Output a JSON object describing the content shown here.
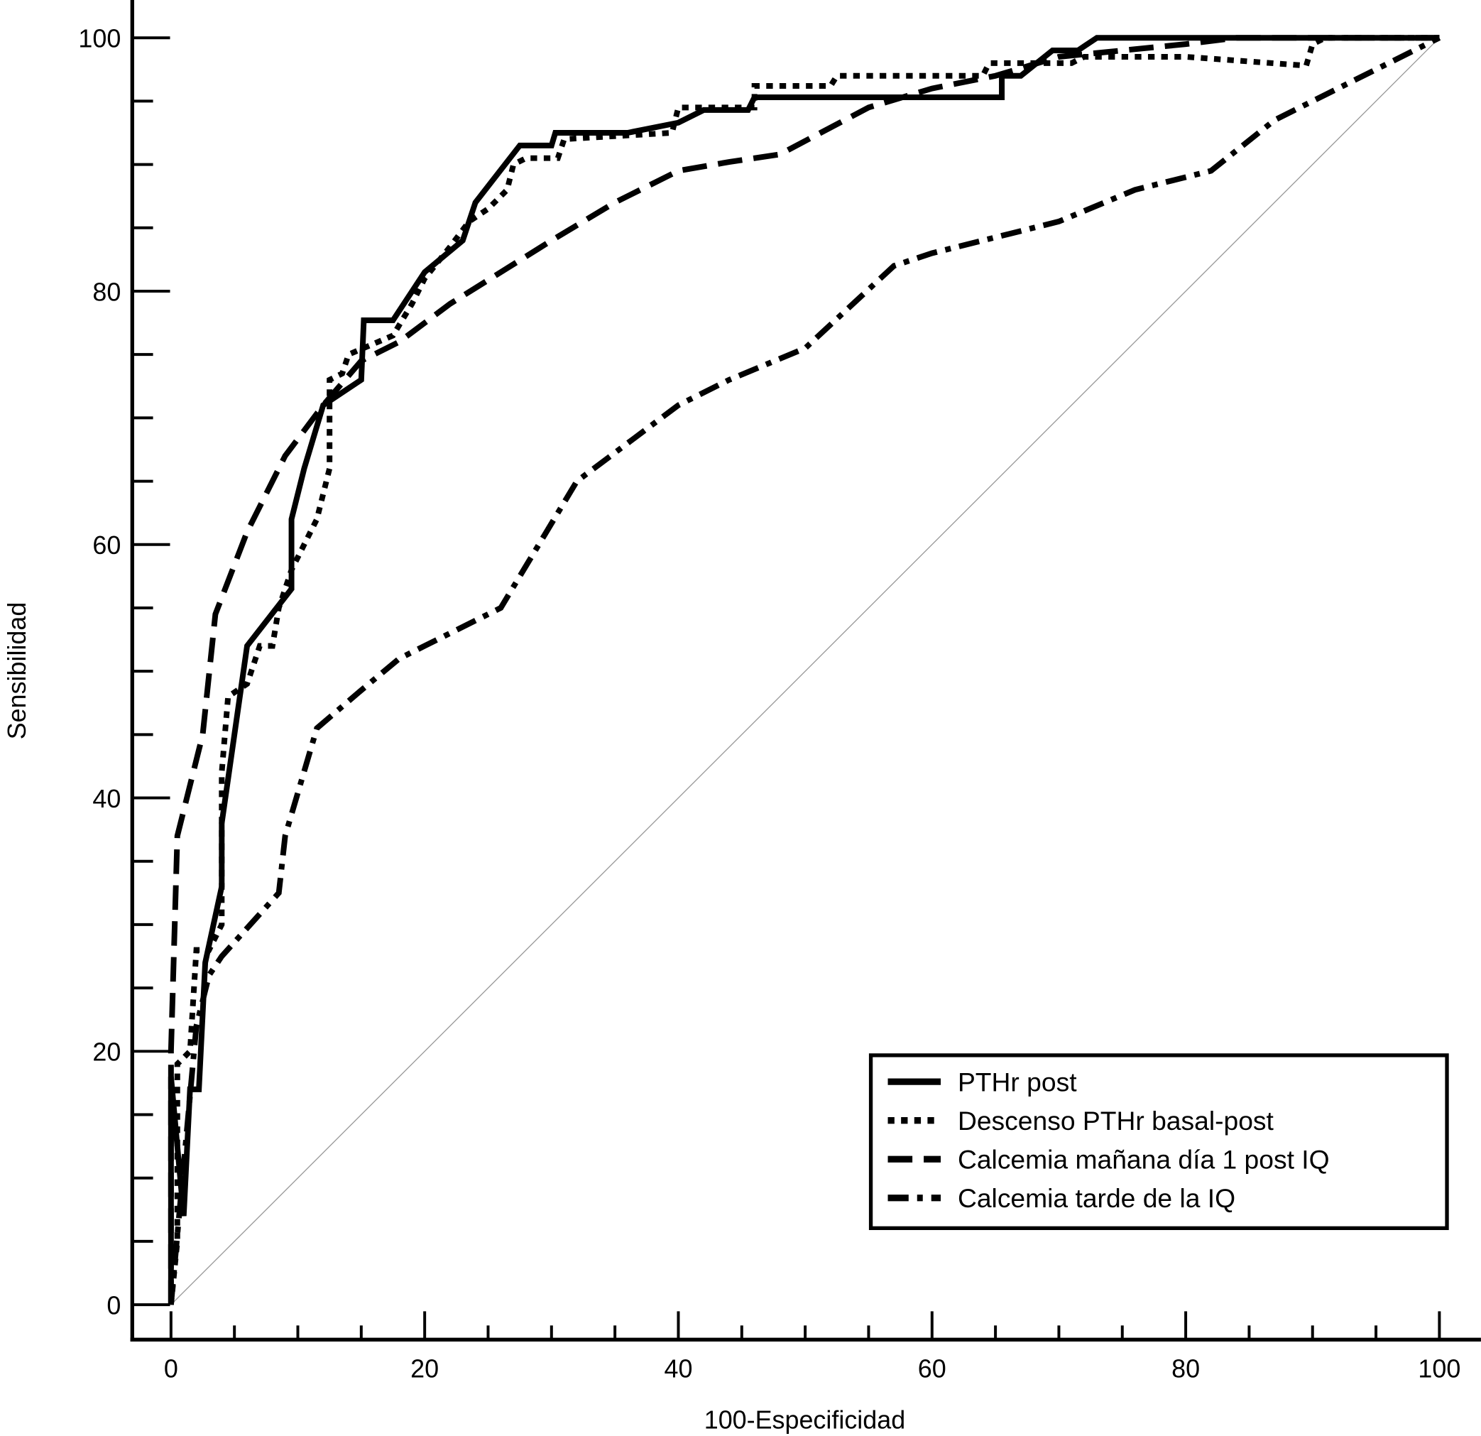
{
  "chart_data": {
    "type": "line",
    "title": "",
    "xlabel": "100-Especificidad",
    "ylabel": "Sensibilidad",
    "xlim": [
      0,
      100
    ],
    "ylim": [
      0,
      100
    ],
    "xticks": [
      "0",
      "20",
      "40",
      "60",
      "80",
      "100"
    ],
    "yticks": [
      "0",
      "20",
      "40",
      "60",
      "80",
      "100"
    ],
    "minor_tick_step": 5,
    "grid": false,
    "legend_position": "bottom-right",
    "reference_line": {
      "x": [
        0,
        100
      ],
      "y": [
        0,
        100
      ],
      "color": "#999999"
    },
    "series": [
      {
        "name": "PTHr post",
        "style": "solid",
        "color": "#000000",
        "points": [
          [
            0,
            0
          ],
          [
            0,
            18
          ],
          [
            1,
            7
          ],
          [
            1.5,
            17
          ],
          [
            2.2,
            17
          ],
          [
            2.7,
            27
          ],
          [
            4,
            33
          ],
          [
            4,
            38
          ],
          [
            6,
            52
          ],
          [
            9.5,
            56.5
          ],
          [
            9.5,
            62
          ],
          [
            10.5,
            66
          ],
          [
            12,
            71
          ],
          [
            15,
            73
          ],
          [
            15.2,
            77.7
          ],
          [
            17.5,
            77.7
          ],
          [
            20,
            81.5
          ],
          [
            23,
            84
          ],
          [
            24,
            87
          ],
          [
            27.5,
            91.5
          ],
          [
            30,
            91.5
          ],
          [
            30.3,
            92.5
          ],
          [
            36,
            92.5
          ],
          [
            40,
            93.3
          ],
          [
            42,
            94.3
          ],
          [
            45.5,
            94.3
          ],
          [
            46,
            95.3
          ],
          [
            65.5,
            95.3
          ],
          [
            65.5,
            97
          ],
          [
            67,
            97
          ],
          [
            69.5,
            99
          ],
          [
            71.5,
            99
          ],
          [
            73,
            100
          ],
          [
            100,
            100
          ]
        ]
      },
      {
        "name": "Descenso PTHr basal-post",
        "style": "dotted",
        "color": "#000000",
        "points": [
          [
            0,
            0
          ],
          [
            0.5,
            5
          ],
          [
            0.5,
            19
          ],
          [
            1.5,
            20
          ],
          [
            2,
            28
          ],
          [
            3,
            28
          ],
          [
            4,
            30
          ],
          [
            4,
            42
          ],
          [
            4.5,
            48
          ],
          [
            6,
            49
          ],
          [
            7,
            52
          ],
          [
            8,
            52
          ],
          [
            8.5,
            55
          ],
          [
            9.5,
            58
          ],
          [
            10.5,
            60
          ],
          [
            11.5,
            62
          ],
          [
            12.5,
            66
          ],
          [
            12.5,
            73
          ],
          [
            13.5,
            73.5
          ],
          [
            14,
            75
          ],
          [
            17.5,
            76.5
          ],
          [
            19,
            79
          ],
          [
            20,
            81
          ],
          [
            22,
            83.5
          ],
          [
            23.5,
            85.5
          ],
          [
            25,
            86.5
          ],
          [
            26.5,
            88
          ],
          [
            27,
            90
          ],
          [
            28,
            90.5
          ],
          [
            30.5,
            90.5
          ],
          [
            31,
            92
          ],
          [
            39.5,
            92.5
          ],
          [
            40,
            94.5
          ],
          [
            46,
            94.5
          ],
          [
            46,
            96.2
          ],
          [
            52,
            96.2
          ],
          [
            52.5,
            97
          ],
          [
            64,
            97
          ],
          [
            64.5,
            98
          ],
          [
            71,
            98
          ],
          [
            72,
            98.5
          ],
          [
            80,
            98.5
          ],
          [
            89.5,
            97.8
          ],
          [
            90,
            99.5
          ],
          [
            91,
            100
          ],
          [
            100,
            100
          ]
        ]
      },
      {
        "name": "Calcemia mañana día 1 post IQ",
        "style": "dashed",
        "color": "#000000",
        "points": [
          [
            0,
            0
          ],
          [
            0,
            20
          ],
          [
            0.5,
            37
          ],
          [
            2.5,
            45
          ],
          [
            3.5,
            54.5
          ],
          [
            6,
            61
          ],
          [
            9,
            67
          ],
          [
            12,
            71
          ],
          [
            15,
            74.5
          ],
          [
            18,
            76
          ],
          [
            22,
            79
          ],
          [
            26,
            81.5
          ],
          [
            30,
            84
          ],
          [
            35,
            87
          ],
          [
            40,
            89.5
          ],
          [
            44,
            90.2
          ],
          [
            48,
            90.8
          ],
          [
            55,
            94.5
          ],
          [
            60,
            96
          ],
          [
            65,
            97
          ],
          [
            70,
            98.5
          ],
          [
            80,
            99.5
          ],
          [
            84,
            100
          ],
          [
            100,
            100
          ]
        ]
      },
      {
        "name": "Calcemia tarde de la IQ",
        "style": "dash-dot",
        "color": "#000000",
        "points": [
          [
            0,
            0
          ],
          [
            2,
            22
          ],
          [
            3,
            26
          ],
          [
            4,
            27.5
          ],
          [
            8.5,
            32.5
          ],
          [
            9,
            37
          ],
          [
            11.5,
            45.5
          ],
          [
            15,
            48.5
          ],
          [
            18,
            51
          ],
          [
            20,
            52
          ],
          [
            26,
            55
          ],
          [
            32,
            65
          ],
          [
            40,
            71
          ],
          [
            44,
            73
          ],
          [
            50,
            75.5
          ],
          [
            57,
            82
          ],
          [
            60,
            83
          ],
          [
            66,
            84.5
          ],
          [
            70,
            85.5
          ],
          [
            76,
            88
          ],
          [
            82,
            89.5
          ],
          [
            87,
            93.5
          ],
          [
            92,
            96
          ],
          [
            96,
            98
          ],
          [
            100,
            100
          ]
        ]
      }
    ]
  }
}
